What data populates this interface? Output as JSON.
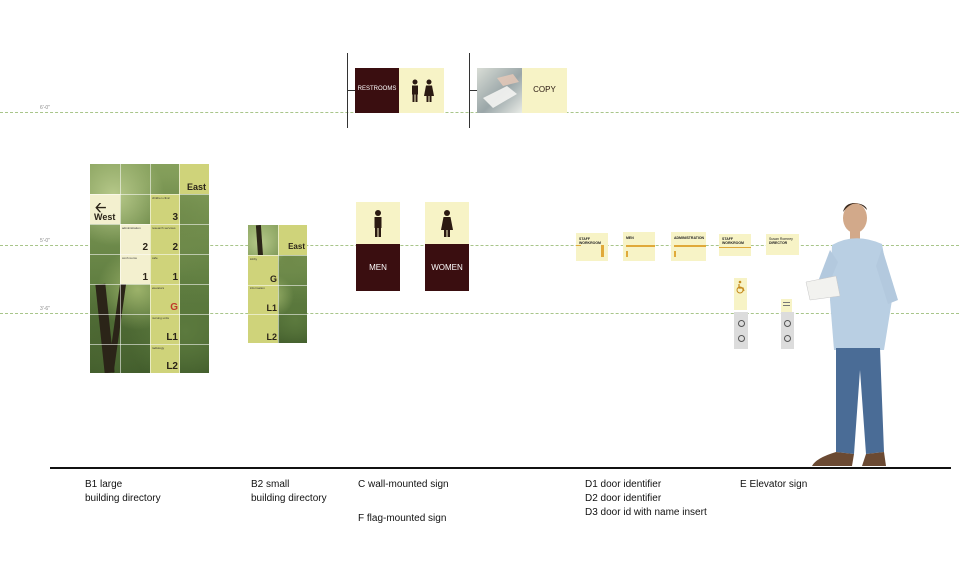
{
  "guides": {
    "top": "6'-0\"",
    "middle": "5'-0\"",
    "bottom": "3'-6\""
  },
  "b1": {
    "east": "East",
    "west": "West",
    "floors": [
      "3",
      "2",
      "2",
      "1",
      "1",
      "G",
      "L1",
      "L2"
    ],
    "notes": [
      "children clinic",
      "administration",
      "research services",
      "conf rooms",
      "cafe",
      "elevators",
      "nursing units",
      "radiology",
      "lobby",
      "information"
    ]
  },
  "b2": {
    "east": "East",
    "floors": [
      "G",
      "L1",
      "L2"
    ]
  },
  "restroom_sign": {
    "label": "RESTROOMS"
  },
  "copy_sign": {
    "label": "COPY"
  },
  "wall_signs": {
    "men": "MEN",
    "women": "WOMEN"
  },
  "door_ids": [
    {
      "line1": "STAFF",
      "line2": "WORKROOM"
    },
    {
      "line1": "MEN",
      "line2": ""
    },
    {
      "line1": "ADMINISTRATION",
      "line2": ""
    },
    {
      "line1": "STAFF",
      "line2": "WORKROOM"
    },
    {
      "line1": "Susan Romney",
      "line2": "DIRECTOR"
    }
  ],
  "captions": {
    "b1_line1": "B1 large",
    "b1_line2": "building directory",
    "b2_line1": "B2 small",
    "b2_line2": "building directory",
    "c": "C wall-mounted sign",
    "f": "F flag-mounted sign",
    "d1": "D1 door identifier",
    "d2": "D2 door identifier",
    "d3": "D3 door id with name insert",
    "e": "E Elevator sign"
  },
  "colors": {
    "maroon": "#3a0e10",
    "cream": "#f7f3c6",
    "directory_yellow": "#cfd37a",
    "accent_orange": "#e0a93a",
    "guide_green": "#a8c58a"
  }
}
